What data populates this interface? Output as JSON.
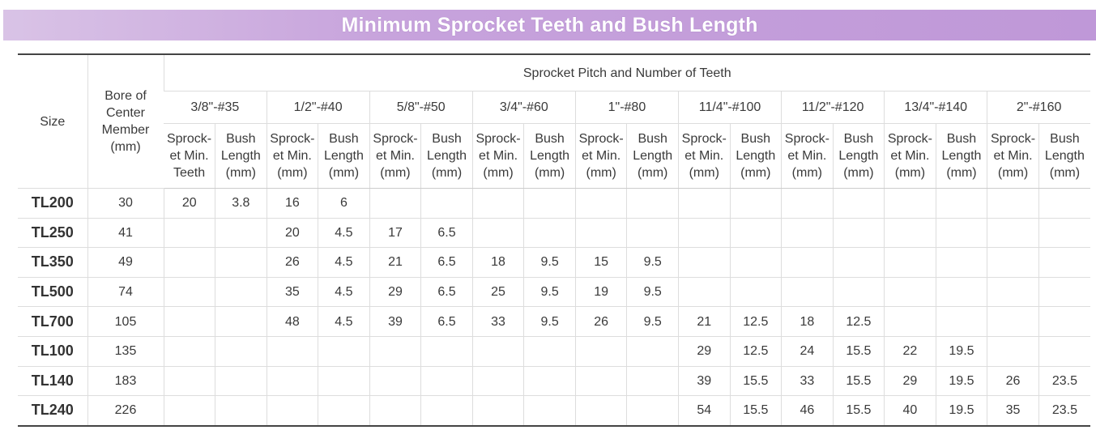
{
  "title": "Minimum Sprocket Teeth and Bush Length",
  "headers": {
    "size": "Size",
    "bore": [
      "Bore of",
      "Center",
      "Member",
      "(mm)"
    ],
    "group": "Sprocket Pitch and Number of Teeth",
    "pitches": [
      "3/8\"-#35",
      "1/2\"-#40",
      "5/8\"-#50",
      "3/4\"-#60",
      "1\"-#80",
      "11/4\"-#100",
      "11/2\"-#120",
      "13/4\"-#140",
      "2\"-#160"
    ],
    "first_sub": [
      "Sprock-",
      "et Min.",
      "Teeth"
    ],
    "sprocket_sub": [
      "Sprock-",
      "et Min.",
      "(mm)"
    ],
    "bush_sub": [
      "Bush",
      "Length",
      "(mm)"
    ]
  },
  "rows": [
    {
      "size": "TL200",
      "bore": "30",
      "cells": [
        "20",
        "3.8",
        "16",
        "6",
        "",
        "",
        "",
        "",
        "",
        "",
        "",
        "",
        "",
        "",
        "",
        "",
        "",
        ""
      ]
    },
    {
      "size": "TL250",
      "bore": "41",
      "cells": [
        "",
        "",
        "20",
        "4.5",
        "17",
        "6.5",
        "",
        "",
        "",
        "",
        "",
        "",
        "",
        "",
        "",
        "",
        "",
        ""
      ]
    },
    {
      "size": "TL350",
      "bore": "49",
      "cells": [
        "",
        "",
        "26",
        "4.5",
        "21",
        "6.5",
        "18",
        "9.5",
        "15",
        "9.5",
        "",
        "",
        "",
        "",
        "",
        "",
        "",
        ""
      ]
    },
    {
      "size": "TL500",
      "bore": "74",
      "cells": [
        "",
        "",
        "35",
        "4.5",
        "29",
        "6.5",
        "25",
        "9.5",
        "19",
        "9.5",
        "",
        "",
        "",
        "",
        "",
        "",
        "",
        ""
      ]
    },
    {
      "size": "TL700",
      "bore": "105",
      "cells": [
        "",
        "",
        "48",
        "4.5",
        "39",
        "6.5",
        "33",
        "9.5",
        "26",
        "9.5",
        "21",
        "12.5",
        "18",
        "12.5",
        "",
        "",
        "",
        ""
      ]
    },
    {
      "size": "TL100",
      "bore": "135",
      "cells": [
        "",
        "",
        "",
        "",
        "",
        "",
        "",
        "",
        "",
        "",
        "29",
        "12.5",
        "24",
        "15.5",
        "22",
        "19.5",
        "",
        ""
      ]
    },
    {
      "size": "TL140",
      "bore": "183",
      "cells": [
        "",
        "",
        "",
        "",
        "",
        "",
        "",
        "",
        "",
        "",
        "39",
        "15.5",
        "33",
        "15.5",
        "29",
        "19.5",
        "26",
        "23.5"
      ]
    },
    {
      "size": "TL240",
      "bore": "226",
      "cells": [
        "",
        "",
        "",
        "",
        "",
        "",
        "",
        "",
        "",
        "",
        "54",
        "15.5",
        "46",
        "15.5",
        "40",
        "19.5",
        "35",
        "23.5"
      ]
    }
  ]
}
